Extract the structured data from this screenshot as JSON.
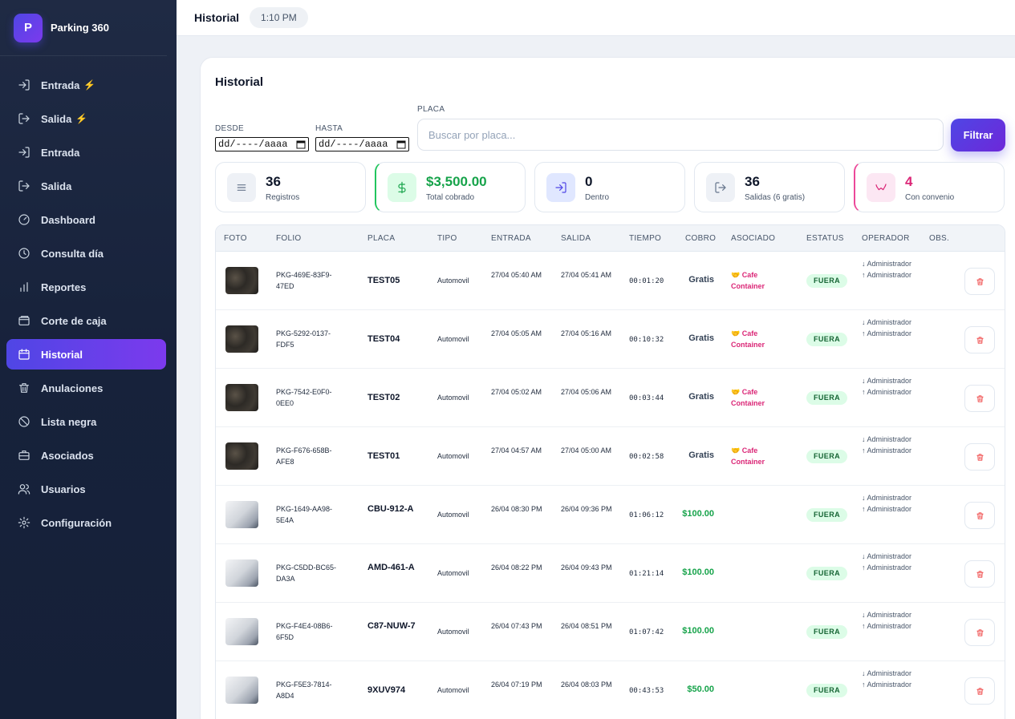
{
  "brand": {
    "logo_letter": "P",
    "name": "Parking 360"
  },
  "sidebar": {
    "items": [
      {
        "label": "Entrada",
        "icon": "login-icon",
        "bolt": "⚡"
      },
      {
        "label": "Salida",
        "icon": "logout-icon",
        "bolt": "⚡"
      },
      {
        "label": "Entrada",
        "icon": "login-icon"
      },
      {
        "label": "Salida",
        "icon": "logout-icon"
      },
      {
        "label": "Dashboard",
        "icon": "gauge-icon"
      },
      {
        "label": "Consulta día",
        "icon": "clock-icon"
      },
      {
        "label": "Reportes",
        "icon": "bar-chart-icon"
      },
      {
        "label": "Corte de caja",
        "icon": "wallet-icon"
      },
      {
        "label": "Historial",
        "icon": "calendar-icon",
        "active": true
      },
      {
        "label": "Anulaciones",
        "icon": "trash-icon"
      },
      {
        "label": "Lista negra",
        "icon": "ban-icon"
      },
      {
        "label": "Asociados",
        "icon": "briefcase-icon"
      },
      {
        "label": "Usuarios",
        "icon": "users-icon"
      },
      {
        "label": "Configuración",
        "icon": "gear-icon"
      }
    ]
  },
  "topbar": {
    "title": "Historial",
    "time": "1:10 PM"
  },
  "main": {
    "title": "Historial",
    "filters": {
      "desde_label": "DESDE",
      "desde_value": "dd/----/aaaa",
      "hasta_label": "HASTA",
      "hasta_value": "dd/----/aaaa",
      "placa_label": "PLACA",
      "placa_placeholder": "Buscar por placa...",
      "filter_button": "Filtrar"
    },
    "stats": [
      {
        "value": "36",
        "label": "Registros",
        "icon": "list-icon",
        "color": "#64748b"
      },
      {
        "value": "$3,500.00",
        "label": "Total cobrado",
        "icon": "dollar-icon",
        "color": "#16a34a"
      },
      {
        "value": "0",
        "label": "Dentro",
        "icon": "login-icon",
        "color": "#4f46e5"
      },
      {
        "value": "36",
        "label": "Salidas (6 gratis)",
        "icon": "logout-icon",
        "color": "#64748b"
      },
      {
        "value": "4",
        "label": "Con convenio",
        "icon": "handshake-icon",
        "color": "#db2777"
      }
    ],
    "table": {
      "headers": [
        "FOTO",
        "FOLIO",
        "PLACA",
        "TIPO",
        "ENTRADA",
        "SALIDA",
        "TIEMPO",
        "COBRO",
        "ASOCIADO",
        "ESTATUS",
        "OPERADOR",
        "OBS."
      ],
      "rows": [
        {
          "thumb": "dark",
          "folio": "PKG-469E-83F9-47ED",
          "placa": "TEST05",
          "tipo": "Automovil",
          "entrada": "27/04 05:40 AM",
          "salida": "27/04 05:41 AM",
          "tiempo": "00:01:20",
          "cobro": "Gratis",
          "asociado": "🤝 Cafe Container",
          "estatus": "FUERA",
          "op_in": "↓ Administrador",
          "op_out": "↑ Administrador"
        },
        {
          "thumb": "dark",
          "folio": "PKG-5292-0137-FDF5",
          "placa": "TEST04",
          "tipo": "Automovil",
          "entrada": "27/04 05:05 AM",
          "salida": "27/04 05:16 AM",
          "tiempo": "00:10:32",
          "cobro": "Gratis",
          "asociado": "🤝 Cafe Container",
          "estatus": "FUERA",
          "op_in": "↓ Administrador",
          "op_out": "↑ Administrador"
        },
        {
          "thumb": "dark",
          "folio": "PKG-7542-E0F0-0EE0",
          "placa": "TEST02",
          "tipo": "Automovil",
          "entrada": "27/04 05:02 AM",
          "salida": "27/04 05:06 AM",
          "tiempo": "00:03:44",
          "cobro": "Gratis",
          "asociado": "🤝 Cafe Container",
          "estatus": "FUERA",
          "op_in": "↓ Administrador",
          "op_out": "↑ Administrador"
        },
        {
          "thumb": "dark",
          "folio": "PKG-F676-658B-AFE8",
          "placa": "TEST01",
          "tipo": "Automovil",
          "entrada": "27/04 04:57 AM",
          "salida": "27/04 05:00 AM",
          "tiempo": "00:02:58",
          "cobro": "Gratis",
          "asociado": "🤝 Cafe Container",
          "estatus": "FUERA",
          "op_in": "↓ Administrador",
          "op_out": "↑ Administrador"
        },
        {
          "thumb": "light",
          "folio": "PKG-1649-AA98-5E4A",
          "placa": "CBU-912-A",
          "tipo": "Automovil",
          "entrada": "26/04 08:30 PM",
          "salida": "26/04 09:36 PM",
          "tiempo": "01:06:12",
          "cobro": "$100.00",
          "asociado": "",
          "estatus": "FUERA",
          "op_in": "↓ Administrador",
          "op_out": "↑ Administrador"
        },
        {
          "thumb": "light",
          "folio": "PKG-C5DD-BC65-DA3A",
          "placa": "AMD-461-A",
          "tipo": "Automovil",
          "entrada": "26/04 08:22 PM",
          "salida": "26/04 09:43 PM",
          "tiempo": "01:21:14",
          "cobro": "$100.00",
          "asociado": "",
          "estatus": "FUERA",
          "op_in": "↓ Administrador",
          "op_out": "↑ Administrador"
        },
        {
          "thumb": "light",
          "folio": "PKG-F4E4-08B6-6F5D",
          "placa": "C87-NUW-7",
          "tipo": "Automovil",
          "entrada": "26/04 07:43 PM",
          "salida": "26/04 08:51 PM",
          "tiempo": "01:07:42",
          "cobro": "$100.00",
          "asociado": "",
          "estatus": "FUERA",
          "op_in": "↓ Administrador",
          "op_out": "↑ Administrador"
        },
        {
          "thumb": "light",
          "folio": "PKG-F5E3-7814-A8D4",
          "placa": "9XUV974",
          "tipo": "Automovil",
          "entrada": "26/04 07:19 PM",
          "salida": "26/04 08:03 PM",
          "tiempo": "00:43:53",
          "cobro": "$50.00",
          "asociado": "",
          "estatus": "FUERA",
          "op_in": "↓ Administrador",
          "op_out": "↑ Administrador"
        }
      ]
    }
  }
}
